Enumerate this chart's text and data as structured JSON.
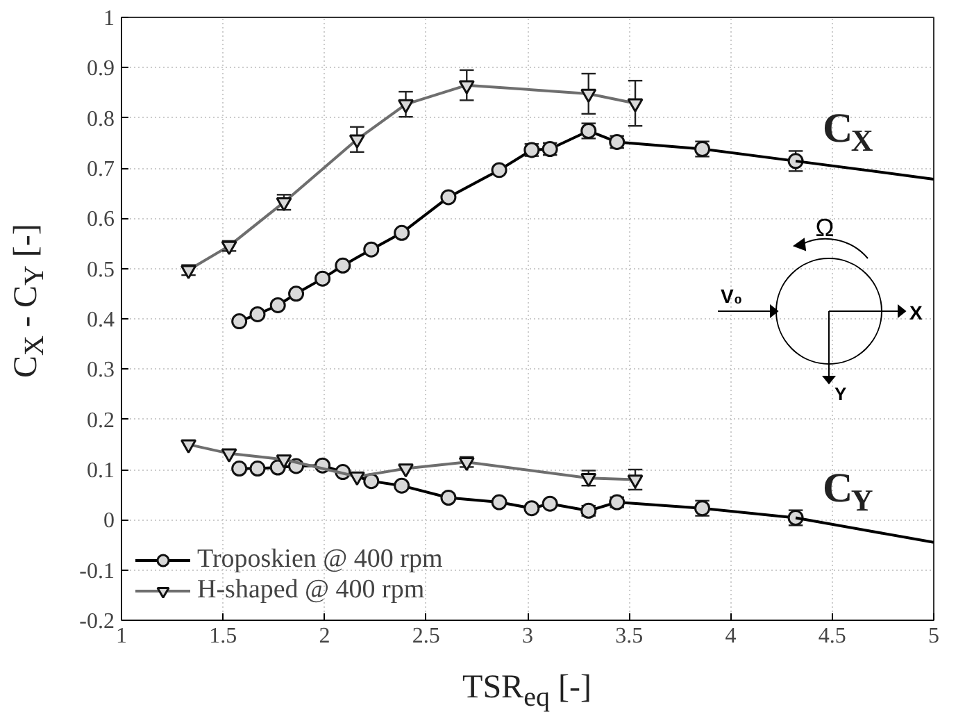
{
  "chart_data": {
    "type": "line",
    "xlabel": "TSR$_{eq}$ [-]",
    "ylabel": "C$_{X}$ - C$_{Y}$ [-]",
    "xlim": [
      1,
      5
    ],
    "ylim": [
      -0.2,
      1
    ],
    "xticks": [
      1,
      1.5,
      2,
      2.5,
      3,
      3.5,
      4,
      4.5,
      5
    ],
    "yticks": [
      -0.2,
      -0.1,
      0,
      0.1,
      0.2,
      0.3,
      0.4,
      0.5,
      0.6,
      0.7,
      0.8,
      0.9,
      1
    ],
    "grid": true,
    "legend": "bottom left",
    "line_style": "solid",
    "series": [
      {
        "name": "Troposkien @ 400 rpm",
        "color": "#000000",
        "marker": "circle",
        "x": [
          1.58,
          1.67,
          1.77,
          1.86,
          1.99,
          2.09,
          2.23,
          2.38,
          2.61,
          2.86,
          3.02,
          3.11,
          3.3,
          3.44,
          3.86,
          4.32
        ],
        "values": [
          0.395,
          0.409,
          0.427,
          0.45,
          0.48,
          0.506,
          0.538,
          0.571,
          0.642,
          0.696,
          0.736,
          0.738,
          0.774,
          0.752,
          0.738,
          0.714
        ],
        "errors": [
          null,
          null,
          null,
          null,
          null,
          null,
          null,
          null,
          null,
          null,
          0.012,
          0.012,
          0.015,
          0.012,
          0.015,
          0.02
        ]
      },
      {
        "color": "#000000",
        "marker": "none",
        "x": [
          4.32,
          5
        ],
        "values": [
          0.714,
          0.678
        ]
      },
      {
        "color": "#000000",
        "marker": "circle",
        "x": [
          1.58,
          1.67,
          1.77,
          1.86,
          1.99,
          2.09,
          2.23,
          2.38,
          2.61,
          2.86,
          3.02,
          3.11,
          3.3,
          3.44,
          3.86,
          4.32
        ],
        "values": [
          0.102,
          0.102,
          0.104,
          0.107,
          0.108,
          0.095,
          0.077,
          0.068,
          0.044,
          0.035,
          0.023,
          0.032,
          0.018,
          0.035,
          0.023,
          0.004
        ],
        "errors": [
          null,
          null,
          null,
          null,
          null,
          null,
          null,
          null,
          null,
          null,
          null,
          null,
          0.01,
          0.01,
          0.015,
          0.015
        ]
      },
      {
        "color": "#000000",
        "marker": "none",
        "x": [
          4.32,
          5
        ],
        "values": [
          0.004,
          -0.045
        ]
      },
      {
        "name": "H-shaped @ 400 rpm",
        "color": "#6e6e6e",
        "marker": "triangle",
        "x": [
          1.33,
          1.53,
          1.8,
          2.16,
          2.4,
          2.7,
          3.3,
          3.53
        ],
        "values": [
          0.497,
          0.545,
          0.632,
          0.757,
          0.827,
          0.865,
          0.848,
          0.829
        ],
        "errors": [
          0.01,
          0.01,
          0.015,
          0.025,
          0.025,
          0.03,
          0.04,
          0.045
        ]
      },
      {
        "color": "#6e6e6e",
        "marker": "triangle",
        "x": [
          1.33,
          1.53,
          1.8,
          2.16,
          2.4,
          2.7,
          3.3,
          3.53
        ],
        "values": [
          0.15,
          0.132,
          0.12,
          0.086,
          0.102,
          0.115,
          0.083,
          0.08
        ],
        "errors": [
          null,
          null,
          null,
          null,
          null,
          0.01,
          0.015,
          0.02
        ]
      }
    ],
    "annotations": [
      "C$_{X}$",
      "C$_{Y}$",
      "Ω",
      "V₀",
      "X",
      "Y"
    ]
  }
}
